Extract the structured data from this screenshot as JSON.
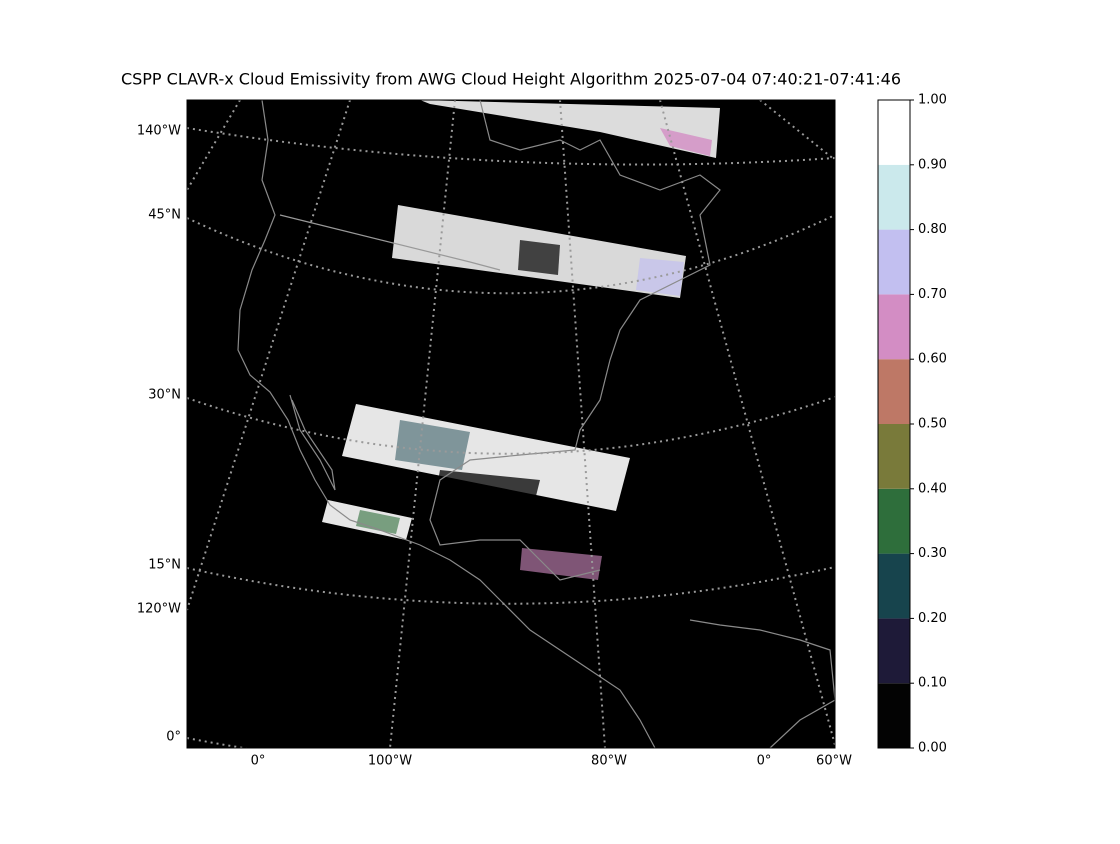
{
  "title": "CSPP CLAVR-x Cloud Emissivity from AWG Cloud Height Algorithm 2025-07-04 07:40:21-07:41:46",
  "map": {
    "left_labels": [
      "140°W",
      "45°N",
      "30°N",
      "15°N",
      "120°W",
      "0°"
    ],
    "bottom_labels": [
      "0°",
      "100°W",
      "80°W",
      "0°",
      "60°W"
    ]
  },
  "colorbar": {
    "ticks": [
      {
        "value": 0,
        "label": "0.00"
      },
      {
        "value": 0.1,
        "label": "0.10"
      },
      {
        "value": 0.2,
        "label": "0.20"
      },
      {
        "value": 0.3,
        "label": "0.30"
      },
      {
        "value": 0.4,
        "label": "0.40"
      },
      {
        "value": 0.5,
        "label": "0.50"
      },
      {
        "value": 0.6,
        "label": "0.60"
      },
      {
        "value": 0.7,
        "label": "0.70"
      },
      {
        "value": 0.8,
        "label": "0.80"
      },
      {
        "value": 0.9,
        "label": "0.90"
      },
      {
        "value": 1,
        "label": "1.00"
      }
    ],
    "colors": [
      "#030303",
      "#1e1a38",
      "#17444d",
      "#2e6e3b",
      "#797a3a",
      "#be7866",
      "#d38dc4",
      "#c2bff0",
      "#cbe9ec",
      "#ffffff"
    ]
  }
}
